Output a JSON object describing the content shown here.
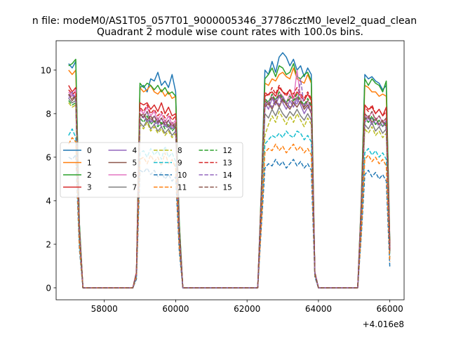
{
  "chart_data": {
    "type": "line",
    "suptitle": "n file: modeM0/AS1T05_057T01_9000005346_37786cztM0_level2_quad_clean",
    "title": "Quadrant 2 module wise count rates with 100.0s bins.",
    "xlabel": "",
    "ylabel": "",
    "offset_label": "+4.016e8",
    "xlim": [
      56650,
      66400
    ],
    "ylim": [
      -0.55,
      11.35
    ],
    "x_ticks": [
      58000,
      60000,
      62000,
      64000,
      66000
    ],
    "y_ticks": [
      0,
      2,
      4,
      6,
      8,
      10
    ],
    "grid": false,
    "legend_position": "center-left",
    "legend_columns": 4,
    "x": [
      57000,
      57100,
      57200,
      57300,
      57400,
      57500,
      58800,
      58900,
      59000,
      59100,
      59200,
      59300,
      59400,
      59500,
      59600,
      59700,
      59800,
      59900,
      60000,
      60100,
      60200,
      62300,
      62400,
      62500,
      62600,
      62700,
      62800,
      62900,
      63000,
      63100,
      63200,
      63300,
      63400,
      63500,
      63600,
      63700,
      63800,
      63900,
      64000,
      65100,
      65200,
      65300,
      65400,
      65500,
      65600,
      65700,
      65800,
      65900,
      66000
    ],
    "series": [
      {
        "name": "0",
        "color": "#1f77b4",
        "dash": "solid",
        "values": [
          10.3,
          10.1,
          10.4,
          3.0,
          0.0,
          0.0,
          0.0,
          0.7,
          9.2,
          9.3,
          9.0,
          9.6,
          9.5,
          9.9,
          9.3,
          9.5,
          9.2,
          9.8,
          9.0,
          3.0,
          0.0,
          0.0,
          4.5,
          10.0,
          9.8,
          10.4,
          9.9,
          10.6,
          10.8,
          10.6,
          10.2,
          10.5,
          10.0,
          10.2,
          9.7,
          10.1,
          9.8,
          0.7,
          0.0,
          0.0,
          4.0,
          9.8,
          9.6,
          9.7,
          9.5,
          9.4,
          9.1,
          9.3,
          2.0
        ]
      },
      {
        "name": "1",
        "color": "#ff7f0e",
        "dash": "solid",
        "values": [
          10.0,
          9.8,
          10.0,
          2.8,
          0.0,
          0.0,
          0.0,
          0.7,
          9.2,
          9.0,
          9.1,
          9.3,
          9.0,
          8.9,
          9.1,
          8.8,
          9.0,
          8.7,
          8.8,
          2.8,
          0.0,
          0.0,
          4.4,
          9.4,
          9.3,
          9.6,
          9.5,
          9.8,
          9.9,
          9.7,
          9.6,
          10.1,
          9.6,
          9.5,
          9.4,
          9.8,
          9.4,
          0.7,
          0.0,
          0.0,
          3.9,
          9.3,
          9.2,
          9.0,
          9.0,
          8.8,
          8.9,
          8.8,
          1.9
        ]
      },
      {
        "name": "2",
        "color": "#2ca02c",
        "dash": "solid",
        "values": [
          10.2,
          10.3,
          10.5,
          3.0,
          0.0,
          0.0,
          0.0,
          0.7,
          9.4,
          9.2,
          9.4,
          9.3,
          9.1,
          9.3,
          9.0,
          9.2,
          8.9,
          9.0,
          8.8,
          3.0,
          0.0,
          0.0,
          4.5,
          9.6,
          9.8,
          10.1,
          9.7,
          10.2,
          10.1,
          9.8,
          9.9,
          10.3,
          9.7,
          9.6,
          9.8,
          9.9,
          9.5,
          0.7,
          0.0,
          0.0,
          4.0,
          9.6,
          9.3,
          9.6,
          9.4,
          9.3,
          9.0,
          9.5,
          2.0
        ]
      },
      {
        "name": "3",
        "color": "#d62728",
        "dash": "solid",
        "values": [
          9.3,
          9.0,
          9.2,
          2.7,
          0.0,
          0.0,
          0.0,
          0.7,
          8.5,
          8.4,
          8.5,
          8.2,
          8.4,
          8.1,
          8.5,
          8.0,
          8.3,
          7.9,
          8.0,
          2.6,
          0.0,
          0.0,
          4.2,
          8.8,
          8.9,
          9.0,
          8.8,
          9.2,
          9.0,
          8.9,
          9.1,
          8.7,
          9.0,
          8.8,
          8.6,
          8.9,
          8.6,
          0.7,
          0.0,
          0.0,
          3.7,
          8.4,
          8.2,
          8.3,
          8.0,
          8.2,
          7.9,
          8.3,
          1.8
        ]
      },
      {
        "name": "4",
        "color": "#9467bd",
        "dash": "solid",
        "values": [
          8.8,
          9.0,
          8.7,
          2.6,
          0.0,
          0.0,
          0.0,
          0.7,
          8.0,
          7.8,
          8.1,
          7.6,
          7.9,
          7.5,
          7.8,
          7.4,
          7.7,
          7.3,
          7.5,
          2.5,
          0.0,
          0.0,
          4.0,
          8.5,
          8.2,
          8.7,
          8.4,
          8.8,
          8.5,
          8.2,
          8.6,
          8.3,
          8.7,
          8.4,
          8.0,
          8.3,
          8.1,
          0.7,
          0.0,
          0.0,
          3.5,
          7.9,
          7.6,
          7.8,
          7.5,
          7.7,
          7.4,
          7.7,
          1.7
        ]
      },
      {
        "name": "5",
        "color": "#8c564b",
        "dash": "solid",
        "values": [
          8.9,
          8.6,
          8.8,
          2.6,
          0.0,
          0.0,
          0.0,
          0.7,
          7.9,
          8.0,
          7.7,
          7.9,
          7.6,
          7.8,
          7.5,
          7.7,
          7.4,
          7.6,
          7.3,
          2.5,
          0.0,
          0.0,
          4.0,
          8.3,
          8.5,
          8.2,
          8.6,
          8.3,
          8.7,
          8.4,
          8.2,
          8.5,
          8.3,
          8.6,
          8.2,
          8.4,
          8.0,
          0.7,
          0.0,
          0.0,
          3.5,
          7.7,
          7.9,
          7.6,
          7.8,
          7.5,
          7.7,
          7.4,
          1.7
        ]
      },
      {
        "name": "6",
        "color": "#e377c2",
        "dash": "solid",
        "values": [
          9.0,
          8.8,
          9.1,
          2.7,
          0.0,
          0.0,
          0.0,
          0.7,
          8.2,
          8.0,
          8.3,
          7.9,
          8.1,
          7.7,
          8.0,
          7.6,
          7.9,
          7.5,
          7.7,
          2.5,
          0.0,
          0.0,
          4.1,
          8.7,
          8.5,
          8.9,
          8.6,
          9.0,
          8.8,
          8.5,
          8.9,
          8.6,
          10.0,
          8.7,
          8.3,
          8.6,
          8.3,
          0.7,
          0.0,
          0.0,
          3.6,
          8.0,
          7.8,
          8.1,
          7.7,
          7.9,
          7.6,
          7.8,
          1.7
        ]
      },
      {
        "name": "7",
        "color": "#7f7f7f",
        "dash": "solid",
        "values": [
          8.7,
          8.5,
          8.6,
          2.5,
          0.0,
          0.0,
          0.0,
          0.6,
          7.6,
          7.4,
          7.7,
          7.3,
          7.5,
          7.2,
          7.4,
          7.1,
          7.3,
          7.0,
          7.2,
          2.4,
          0.0,
          0.0,
          3.9,
          8.0,
          7.8,
          8.2,
          7.9,
          8.3,
          8.0,
          7.8,
          8.1,
          7.9,
          8.2,
          7.9,
          7.7,
          8.0,
          7.7,
          0.6,
          0.0,
          0.0,
          3.4,
          7.5,
          7.3,
          7.6,
          7.2,
          7.4,
          7.1,
          7.3,
          1.6
        ]
      },
      {
        "name": "8",
        "color": "#bcbd22",
        "dash": "dashed",
        "values": [
          8.5,
          8.3,
          8.4,
          2.5,
          0.0,
          0.0,
          0.0,
          0.6,
          7.5,
          7.3,
          7.6,
          7.2,
          7.4,
          7.1,
          7.3,
          7.0,
          7.2,
          6.9,
          7.1,
          2.4,
          0.0,
          0.0,
          3.8,
          7.0,
          7.5,
          7.9,
          7.6,
          8.1,
          7.8,
          7.5,
          7.9,
          7.6,
          8.0,
          7.7,
          7.4,
          7.8,
          7.5,
          0.6,
          0.0,
          0.0,
          3.3,
          7.3,
          7.1,
          7.4,
          7.0,
          7.2,
          6.9,
          7.1,
          1.6
        ]
      },
      {
        "name": "9",
        "color": "#17becf",
        "dash": "dashed",
        "values": [
          7.0,
          7.3,
          6.9,
          2.1,
          0.0,
          0.0,
          0.0,
          0.5,
          6.2,
          6.3,
          6.0,
          6.4,
          6.1,
          6.3,
          5.9,
          6.5,
          6.0,
          6.2,
          5.8,
          2.0,
          0.0,
          0.0,
          3.2,
          6.6,
          6.8,
          7.0,
          6.9,
          7.1,
          6.9,
          7.2,
          7.0,
          6.9,
          7.2,
          7.1,
          6.8,
          7.0,
          6.7,
          0.6,
          0.0,
          0.0,
          2.8,
          6.2,
          6.4,
          6.1,
          6.3,
          6.0,
          6.2,
          5.9,
          1.4
        ]
      },
      {
        "name": "10",
        "color": "#1f77b4",
        "dash": "dashed",
        "values": [
          6.0,
          5.9,
          6.1,
          1.8,
          0.0,
          0.0,
          0.0,
          0.4,
          5.4,
          5.3,
          5.5,
          5.2,
          5.4,
          5.1,
          5.3,
          5.0,
          5.2,
          4.9,
          5.1,
          1.7,
          0.0,
          0.0,
          2.8,
          5.5,
          5.7,
          5.6,
          5.9,
          5.6,
          5.8,
          5.5,
          5.7,
          5.9,
          5.6,
          5.8,
          5.5,
          5.7,
          5.4,
          0.5,
          0.0,
          0.0,
          2.4,
          5.2,
          5.4,
          5.1,
          5.3,
          5.0,
          5.2,
          4.9,
          0.9
        ]
      },
      {
        "name": "11",
        "color": "#ff7f0e",
        "dash": "dashed",
        "values": [
          6.6,
          6.9,
          6.7,
          2.0,
          0.0,
          0.0,
          0.0,
          0.5,
          5.9,
          6.0,
          5.7,
          6.1,
          5.8,
          6.0,
          5.6,
          6.2,
          5.7,
          5.9,
          5.5,
          1.9,
          0.0,
          0.0,
          3.0,
          6.2,
          6.4,
          6.3,
          6.6,
          6.3,
          6.5,
          6.2,
          6.4,
          6.6,
          6.3,
          6.5,
          6.2,
          6.4,
          6.1,
          0.6,
          0.0,
          0.0,
          2.6,
          5.9,
          6.1,
          5.8,
          6.0,
          5.7,
          5.9,
          5.6,
          1.2
        ]
      },
      {
        "name": "12",
        "color": "#2ca02c",
        "dash": "dashed",
        "values": [
          8.6,
          8.4,
          8.5,
          2.6,
          0.0,
          0.0,
          0.0,
          0.6,
          7.8,
          7.6,
          7.9,
          7.5,
          7.7,
          7.4,
          7.6,
          7.3,
          7.5,
          7.2,
          7.4,
          2.4,
          0.0,
          0.0,
          4.0,
          8.7,
          8.5,
          8.9,
          8.6,
          9.0,
          8.7,
          8.5,
          8.8,
          8.6,
          8.9,
          8.6,
          8.4,
          8.7,
          8.4,
          0.7,
          0.0,
          0.0,
          3.5,
          7.8,
          7.6,
          7.9,
          7.5,
          7.7,
          7.4,
          7.6,
          1.7
        ]
      },
      {
        "name": "13",
        "color": "#d62728",
        "dash": "dashed",
        "values": [
          9.1,
          8.9,
          9.0,
          2.7,
          0.0,
          0.0,
          0.0,
          0.7,
          8.3,
          8.1,
          8.4,
          8.0,
          8.2,
          7.9,
          8.1,
          7.8,
          8.0,
          7.7,
          7.9,
          2.6,
          0.0,
          0.0,
          4.2,
          9.0,
          8.8,
          9.2,
          8.9,
          9.3,
          9.0,
          8.8,
          9.1,
          8.9,
          9.2,
          8.9,
          8.7,
          9.0,
          8.7,
          0.7,
          0.0,
          0.0,
          3.7,
          8.3,
          8.1,
          8.4,
          8.0,
          8.2,
          7.9,
          8.1,
          1.8
        ]
      },
      {
        "name": "14",
        "color": "#9467bd",
        "dash": "dashed",
        "values": [
          8.7,
          8.9,
          8.6,
          2.6,
          0.0,
          0.0,
          0.0,
          0.6,
          7.7,
          7.9,
          7.6,
          7.8,
          7.5,
          7.7,
          7.4,
          7.6,
          7.3,
          7.5,
          7.2,
          2.4,
          0.0,
          0.0,
          4.0,
          8.4,
          8.6,
          8.3,
          8.7,
          8.4,
          8.8,
          8.5,
          8.3,
          8.6,
          8.4,
          9.6,
          8.3,
          8.5,
          8.1,
          0.7,
          0.0,
          0.0,
          3.5,
          7.6,
          7.8,
          7.5,
          7.7,
          7.4,
          7.6,
          7.3,
          1.7
        ]
      },
      {
        "name": "15",
        "color": "#8c564b",
        "dash": "dashed",
        "values": [
          8.9,
          8.7,
          8.8,
          2.6,
          0.0,
          0.0,
          0.0,
          0.7,
          8.0,
          7.8,
          8.1,
          7.7,
          7.9,
          7.6,
          7.8,
          7.5,
          7.7,
          7.4,
          7.6,
          2.5,
          0.0,
          0.0,
          4.1,
          8.6,
          8.4,
          8.8,
          8.5,
          8.9,
          8.6,
          8.4,
          8.7,
          8.5,
          8.8,
          8.5,
          8.3,
          8.6,
          8.3,
          0.7,
          0.0,
          0.0,
          3.6,
          8.0,
          7.8,
          8.1,
          7.7,
          7.9,
          7.6,
          7.8,
          1.7
        ]
      }
    ]
  }
}
